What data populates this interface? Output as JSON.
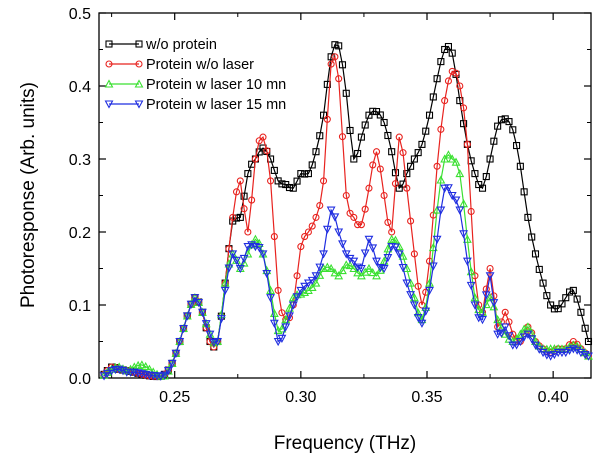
{
  "colors": {
    "black": "#000000",
    "red": "#e8231f",
    "green": "#3be032",
    "blue": "#1f2de0"
  },
  "chart_data": {
    "type": "line",
    "xlabel": "Frequency (THz)",
    "ylabel": "Photoresponse (Arb. units)",
    "xlim": [
      0.22,
      0.415
    ],
    "ylim": [
      0.0,
      0.5
    ],
    "xticks": [
      0.25,
      0.3,
      0.35,
      0.4
    ],
    "xtick_labels": [
      "0.25",
      "0.30",
      "0.35",
      "0.40"
    ],
    "yticks": [
      0.0,
      0.1,
      0.2,
      0.3,
      0.4,
      0.5
    ],
    "ytick_labels": [
      "0.0",
      "0.1",
      "0.2",
      "0.3",
      "0.4",
      "0.5"
    ],
    "grid": false,
    "legend": "top-left",
    "series": [
      {
        "name": "w/o protein",
        "color": "#000000",
        "marker": "square",
        "x": [
          0.222,
          0.225,
          0.228,
          0.231,
          0.234,
          0.237,
          0.24,
          0.243,
          0.246,
          0.249,
          0.252,
          0.255,
          0.258,
          0.261,
          0.264,
          0.267,
          0.27,
          0.273,
          0.276,
          0.279,
          0.282,
          0.285,
          0.288,
          0.291,
          0.294,
          0.297,
          0.3,
          0.303,
          0.306,
          0.309,
          0.312,
          0.315,
          0.318,
          0.321,
          0.324,
          0.327,
          0.33,
          0.333,
          0.336,
          0.339,
          0.342,
          0.345,
          0.348,
          0.351,
          0.354,
          0.357,
          0.36,
          0.363,
          0.366,
          0.369,
          0.372,
          0.375,
          0.378,
          0.381,
          0.384,
          0.387,
          0.39,
          0.393,
          0.396,
          0.399,
          0.402,
          0.405,
          0.408,
          0.411,
          0.414
        ],
        "y": [
          0.005,
          0.015,
          0.012,
          0.01,
          0.008,
          0.005,
          0.003,
          0.002,
          0.005,
          0.02,
          0.05,
          0.085,
          0.11,
          0.09,
          0.05,
          0.05,
          0.13,
          0.215,
          0.22,
          0.28,
          0.3,
          0.315,
          0.3,
          0.27,
          0.265,
          0.26,
          0.28,
          0.28,
          0.31,
          0.36,
          0.44,
          0.455,
          0.39,
          0.3,
          0.33,
          0.36,
          0.365,
          0.35,
          0.31,
          0.26,
          0.28,
          0.3,
          0.32,
          0.36,
          0.41,
          0.45,
          0.445,
          0.38,
          0.32,
          0.28,
          0.26,
          0.3,
          0.345,
          0.355,
          0.34,
          0.29,
          0.22,
          0.17,
          0.13,
          0.1,
          0.095,
          0.11,
          0.12,
          0.09,
          0.05
        ]
      },
      {
        "name": "Protein w/o laser",
        "color": "#e8231f",
        "marker": "circle",
        "x": [
          0.222,
          0.225,
          0.228,
          0.231,
          0.234,
          0.237,
          0.24,
          0.243,
          0.246,
          0.249,
          0.252,
          0.255,
          0.258,
          0.261,
          0.264,
          0.267,
          0.27,
          0.273,
          0.276,
          0.279,
          0.282,
          0.285,
          0.288,
          0.291,
          0.294,
          0.297,
          0.3,
          0.303,
          0.306,
          0.309,
          0.312,
          0.315,
          0.318,
          0.321,
          0.324,
          0.327,
          0.33,
          0.333,
          0.336,
          0.339,
          0.342,
          0.345,
          0.348,
          0.351,
          0.354,
          0.357,
          0.36,
          0.363,
          0.366,
          0.369,
          0.372,
          0.375,
          0.378,
          0.381,
          0.384,
          0.387,
          0.39,
          0.393,
          0.396,
          0.399,
          0.402,
          0.405,
          0.408,
          0.411,
          0.414
        ],
        "y": [
          0.005,
          0.015,
          0.012,
          0.01,
          0.008,
          0.005,
          0.003,
          0.002,
          0.005,
          0.02,
          0.05,
          0.085,
          0.11,
          0.09,
          0.05,
          0.05,
          0.13,
          0.22,
          0.27,
          0.2,
          0.3,
          0.33,
          0.27,
          0.12,
          0.08,
          0.1,
          0.18,
          0.2,
          0.22,
          0.27,
          0.43,
          0.41,
          0.25,
          0.22,
          0.21,
          0.26,
          0.31,
          0.25,
          0.2,
          0.33,
          0.26,
          0.17,
          0.1,
          0.16,
          0.29,
          0.38,
          0.42,
          0.4,
          0.32,
          0.14,
          0.09,
          0.15,
          0.07,
          0.09,
          0.06,
          0.05,
          0.07,
          0.05,
          0.04,
          0.035,
          0.04,
          0.04,
          0.05,
          0.04,
          0.03
        ]
      },
      {
        "name": "Protein w laser 10 mn",
        "color": "#3be032",
        "marker": "triangle-up",
        "x": [
          0.222,
          0.225,
          0.228,
          0.231,
          0.234,
          0.237,
          0.24,
          0.243,
          0.246,
          0.249,
          0.252,
          0.255,
          0.258,
          0.261,
          0.264,
          0.267,
          0.27,
          0.273,
          0.276,
          0.279,
          0.282,
          0.285,
          0.288,
          0.291,
          0.294,
          0.297,
          0.3,
          0.303,
          0.306,
          0.309,
          0.312,
          0.315,
          0.318,
          0.321,
          0.324,
          0.327,
          0.33,
          0.333,
          0.336,
          0.339,
          0.342,
          0.345,
          0.348,
          0.351,
          0.354,
          0.357,
          0.36,
          0.363,
          0.366,
          0.369,
          0.372,
          0.375,
          0.378,
          0.381,
          0.384,
          0.387,
          0.39,
          0.393,
          0.396,
          0.399,
          0.402,
          0.405,
          0.408,
          0.411,
          0.414
        ],
        "y": [
          0.004,
          0.012,
          0.015,
          0.01,
          0.015,
          0.018,
          0.012,
          0.005,
          0.003,
          0.02,
          0.05,
          0.085,
          0.11,
          0.09,
          0.06,
          0.05,
          0.13,
          0.17,
          0.15,
          0.17,
          0.19,
          0.17,
          0.12,
          0.065,
          0.08,
          0.11,
          0.115,
          0.12,
          0.13,
          0.15,
          0.15,
          0.14,
          0.155,
          0.15,
          0.14,
          0.15,
          0.14,
          0.16,
          0.19,
          0.18,
          0.15,
          0.11,
          0.08,
          0.13,
          0.23,
          0.3,
          0.3,
          0.28,
          0.19,
          0.11,
          0.09,
          0.11,
          0.08,
          0.06,
          0.05,
          0.06,
          0.07,
          0.05,
          0.04,
          0.04,
          0.04,
          0.04,
          0.045,
          0.04,
          0.03
        ]
      },
      {
        "name": "Protein w laser 15 mn",
        "color": "#1f2de0",
        "marker": "triangle-down",
        "x": [
          0.222,
          0.225,
          0.228,
          0.231,
          0.234,
          0.237,
          0.24,
          0.243,
          0.246,
          0.249,
          0.252,
          0.255,
          0.258,
          0.261,
          0.264,
          0.267,
          0.27,
          0.273,
          0.276,
          0.279,
          0.282,
          0.285,
          0.288,
          0.291,
          0.294,
          0.297,
          0.3,
          0.303,
          0.306,
          0.309,
          0.312,
          0.315,
          0.318,
          0.321,
          0.324,
          0.327,
          0.33,
          0.333,
          0.336,
          0.339,
          0.342,
          0.345,
          0.348,
          0.351,
          0.354,
          0.357,
          0.36,
          0.363,
          0.366,
          0.369,
          0.372,
          0.375,
          0.378,
          0.381,
          0.384,
          0.387,
          0.39,
          0.393,
          0.396,
          0.399,
          0.402,
          0.405,
          0.408,
          0.411,
          0.414
        ],
        "y": [
          0.003,
          0.01,
          0.012,
          0.008,
          0.008,
          0.006,
          0.004,
          0.003,
          0.004,
          0.02,
          0.05,
          0.085,
          0.11,
          0.09,
          0.06,
          0.05,
          0.12,
          0.17,
          0.15,
          0.18,
          0.18,
          0.17,
          0.11,
          0.05,
          0.07,
          0.1,
          0.12,
          0.13,
          0.14,
          0.17,
          0.23,
          0.2,
          0.17,
          0.16,
          0.15,
          0.19,
          0.16,
          0.15,
          0.18,
          0.17,
          0.13,
          0.1,
          0.075,
          0.12,
          0.19,
          0.26,
          0.25,
          0.23,
          0.16,
          0.1,
          0.08,
          0.14,
          0.06,
          0.07,
          0.045,
          0.05,
          0.06,
          0.045,
          0.035,
          0.03,
          0.035,
          0.035,
          0.04,
          0.035,
          0.03
        ]
      }
    ]
  }
}
